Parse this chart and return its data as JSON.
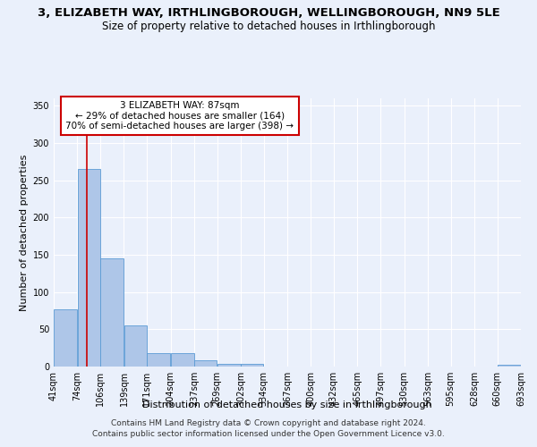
{
  "title": "3, ELIZABETH WAY, IRTHLINGBOROUGH, WELLINGBOROUGH, NN9 5LE",
  "subtitle": "Size of property relative to detached houses in Irthlingborough",
  "xlabel": "Distribution of detached houses by size in Irthlingborough",
  "ylabel": "Number of detached properties",
  "footer_line1": "Contains HM Land Registry data © Crown copyright and database right 2024.",
  "footer_line2": "Contains public sector information licensed under the Open Government Licence v3.0.",
  "annotation_line1": "3 ELIZABETH WAY: 87sqm",
  "annotation_line2": "← 29% of detached houses are smaller (164)",
  "annotation_line3": "70% of semi-detached houses are larger (398) →",
  "bar_left_edges": [
    41,
    74,
    106,
    139,
    171,
    204,
    237,
    269,
    302,
    334,
    367,
    400,
    432,
    465,
    497,
    530,
    563,
    595,
    628,
    660
  ],
  "bar_widths": [
    33,
    32,
    33,
    32,
    33,
    33,
    32,
    33,
    32,
    33,
    33,
    32,
    33,
    32,
    33,
    33,
    32,
    33,
    32,
    33
  ],
  "bar_heights": [
    77,
    265,
    145,
    55,
    18,
    18,
    9,
    4,
    4,
    0,
    0,
    0,
    0,
    0,
    0,
    0,
    0,
    0,
    0,
    3
  ],
  "bar_color": "#aec6e8",
  "bar_edge_color": "#5b9bd5",
  "red_line_x": 87,
  "ylim": [
    0,
    360
  ],
  "yticks": [
    0,
    50,
    100,
    150,
    200,
    250,
    300,
    350
  ],
  "background_color": "#eaf0fb",
  "plot_bg_color": "#eaf0fb",
  "annotation_box_color": "#ffffff",
  "annotation_box_edge_color": "#cc0000",
  "red_line_color": "#cc0000",
  "title_fontsize": 9.5,
  "subtitle_fontsize": 8.5,
  "label_fontsize": 8,
  "tick_fontsize": 7,
  "annotation_fontsize": 7.5,
  "footer_fontsize": 6.5
}
